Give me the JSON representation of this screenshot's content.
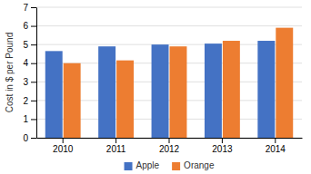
{
  "chart_data": {
    "type": "bar",
    "ylabel": "Cost in $ per Pound",
    "categories": [
      "2010",
      "2011",
      "2012",
      "2013",
      "2014"
    ],
    "series": [
      {
        "name": "Apple",
        "color": "#4472C4",
        "values": [
          4.65,
          4.9,
          5.0,
          5.05,
          5.2
        ]
      },
      {
        "name": "Orange",
        "color": "#ED7D31",
        "values": [
          4.0,
          4.15,
          4.9,
          5.2,
          5.9
        ]
      }
    ],
    "ylim": [
      0,
      7
    ],
    "yticks": [
      0,
      1,
      2,
      3,
      4,
      5,
      6,
      7
    ],
    "grid": true,
    "legend": "bottom"
  }
}
